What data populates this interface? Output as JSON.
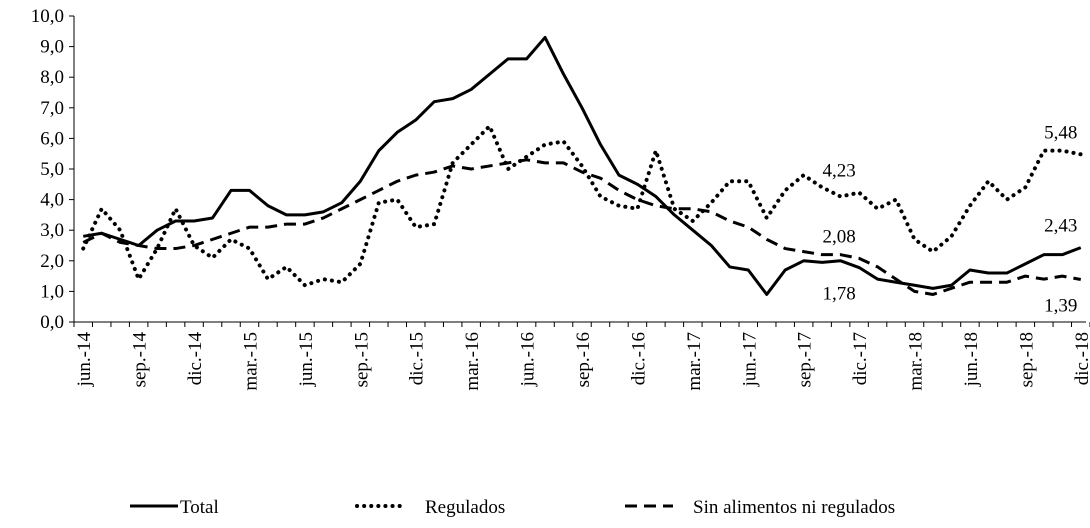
{
  "chart_data": {
    "type": "line",
    "categories": [
      "jun.-14",
      null,
      null,
      "sep.-14",
      null,
      null,
      "dic.-14",
      null,
      null,
      "mar.-15",
      null,
      null,
      "jun.-15",
      null,
      null,
      "sep.-15",
      null,
      null,
      "dic.-15",
      null,
      null,
      "mar.-16",
      null,
      null,
      "jun.-16",
      null,
      null,
      "sep.-16",
      null,
      null,
      "dic.-16",
      null,
      null,
      "mar.-17",
      null,
      null,
      "jun.-17",
      null,
      null,
      "sep.-17",
      null,
      null,
      "dic.-17",
      null,
      null,
      "mar.-18",
      null,
      null,
      "jun.-18",
      null,
      null,
      "sep.-18",
      null,
      null,
      "dic.-18"
    ],
    "series": [
      {
        "name": "Total",
        "color": "#000000",
        "style": "solid",
        "values": [
          2.8,
          2.9,
          2.7,
          2.5,
          3.0,
          3.3,
          3.3,
          3.4,
          4.3,
          4.3,
          3.8,
          3.5,
          3.5,
          3.6,
          3.9,
          4.6,
          5.6,
          6.2,
          6.6,
          7.2,
          7.3,
          7.6,
          8.1,
          8.6,
          8.6,
          9.3,
          8.1,
          7.0,
          5.8,
          4.8,
          4.5,
          4.1,
          3.5,
          3.0,
          2.5,
          1.8,
          1.7,
          0.9,
          1.7,
          2.0,
          1.95,
          2.0,
          1.78,
          1.4,
          1.3,
          1.2,
          1.1,
          1.2,
          1.7,
          1.6,
          1.6,
          1.9,
          2.2,
          2.2,
          2.43
        ],
        "value_labels": [
          null,
          null,
          null,
          null,
          null,
          null,
          null,
          null,
          null,
          null,
          null,
          null,
          null,
          null,
          null,
          null,
          null,
          null,
          null,
          null,
          null,
          null,
          null,
          null,
          null,
          null,
          null,
          null,
          null,
          null,
          null,
          null,
          null,
          null,
          null,
          null,
          null,
          null,
          null,
          null,
          null,
          null,
          "1,78",
          null,
          null,
          null,
          null,
          null,
          null,
          null,
          null,
          null,
          null,
          null,
          "2,43"
        ]
      },
      {
        "name": "Regulados",
        "color": "#000000",
        "style": "dotted",
        "values": [
          2.4,
          3.7,
          3.0,
          1.4,
          2.4,
          3.7,
          2.5,
          2.1,
          2.7,
          2.4,
          1.4,
          1.8,
          1.2,
          1.4,
          1.3,
          1.9,
          3.9,
          4.0,
          3.1,
          3.2,
          5.2,
          5.8,
          6.4,
          5.0,
          5.4,
          5.8,
          5.9,
          5.1,
          4.1,
          3.8,
          3.7,
          5.6,
          3.7,
          3.3,
          3.9,
          4.6,
          4.6,
          3.4,
          4.3,
          4.8,
          4.4,
          4.1,
          4.23,
          3.7,
          4.0,
          2.7,
          2.3,
          2.8,
          3.8,
          4.6,
          4.0,
          4.4,
          5.6,
          5.6,
          5.48
        ],
        "value_labels": [
          null,
          null,
          null,
          null,
          null,
          null,
          null,
          null,
          null,
          null,
          null,
          null,
          null,
          null,
          null,
          null,
          null,
          null,
          null,
          null,
          null,
          null,
          null,
          null,
          null,
          null,
          null,
          null,
          null,
          null,
          null,
          null,
          null,
          null,
          null,
          null,
          null,
          null,
          null,
          null,
          null,
          null,
          "4,23",
          null,
          null,
          null,
          null,
          null,
          null,
          null,
          null,
          null,
          null,
          null,
          "5,48"
        ]
      },
      {
        "name": "Sin alimentos ni regulados",
        "color": "#000000",
        "style": "dashed",
        "values": [
          2.6,
          2.9,
          2.6,
          2.5,
          2.4,
          2.4,
          2.5,
          2.7,
          2.9,
          3.1,
          3.1,
          3.2,
          3.2,
          3.4,
          3.7,
          4.0,
          4.3,
          4.6,
          4.8,
          4.9,
          5.1,
          5.0,
          5.1,
          5.2,
          5.3,
          5.2,
          5.2,
          4.9,
          4.7,
          4.3,
          4.0,
          3.8,
          3.7,
          3.7,
          3.6,
          3.3,
          3.1,
          2.7,
          2.4,
          2.3,
          2.2,
          2.2,
          2.08,
          1.8,
          1.4,
          1.0,
          0.9,
          1.1,
          1.3,
          1.3,
          1.3,
          1.5,
          1.4,
          1.5,
          1.39
        ],
        "value_labels": [
          null,
          null,
          null,
          null,
          null,
          null,
          null,
          null,
          null,
          null,
          null,
          null,
          null,
          null,
          null,
          null,
          null,
          null,
          null,
          null,
          null,
          null,
          null,
          null,
          null,
          null,
          null,
          null,
          null,
          null,
          null,
          null,
          null,
          null,
          null,
          null,
          null,
          null,
          null,
          null,
          null,
          null,
          "2,08",
          null,
          null,
          null,
          null,
          null,
          null,
          null,
          null,
          null,
          null,
          null,
          "1,39"
        ]
      }
    ],
    "ylim": [
      0,
      10
    ],
    "yticks": [
      {
        "value": 0,
        "label": "0,0"
      },
      {
        "value": 1,
        "label": "1,0"
      },
      {
        "value": 2,
        "label": "2,0"
      },
      {
        "value": 3,
        "label": "3,0"
      },
      {
        "value": 4,
        "label": "4,0"
      },
      {
        "value": 5,
        "label": "5,0"
      },
      {
        "value": 6,
        "label": "6,0"
      },
      {
        "value": 7,
        "label": "7,0"
      },
      {
        "value": 8,
        "label": "8,0"
      },
      {
        "value": 9,
        "label": "9,0"
      },
      {
        "value": 10,
        "label": "10,0"
      }
    ],
    "grid": false,
    "legend": "bottom"
  }
}
